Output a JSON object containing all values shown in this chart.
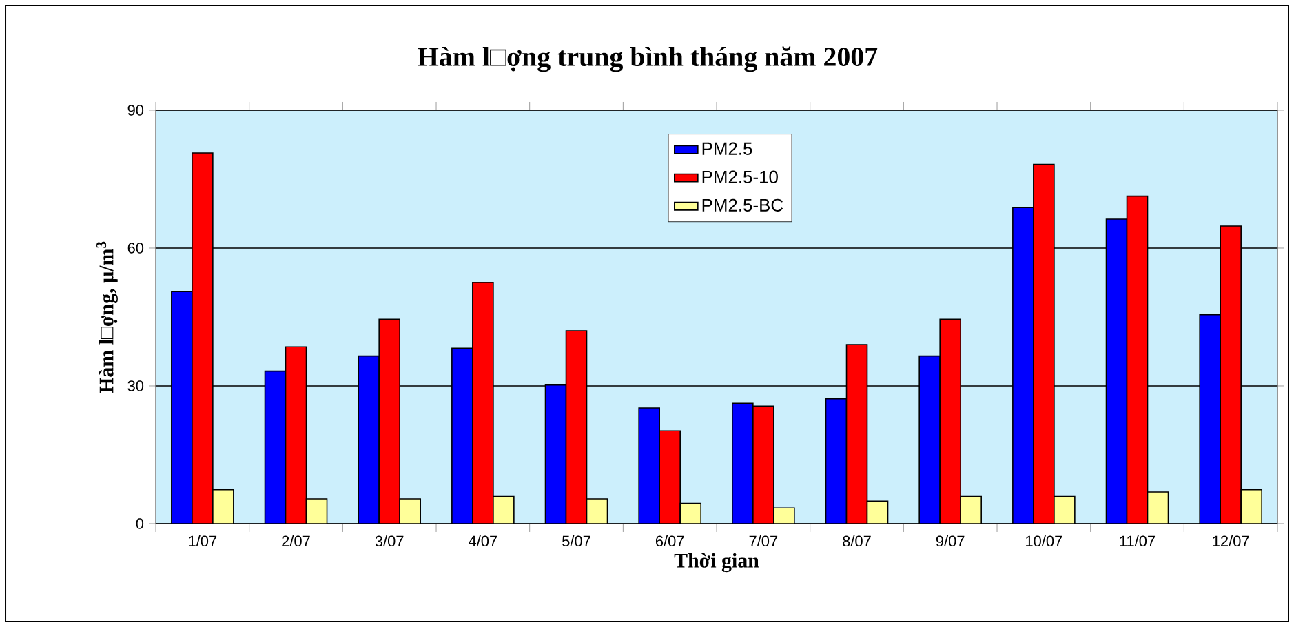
{
  "chart_data": {
    "type": "bar",
    "title": "Hàm l□ợng trung bình tháng năm 2007",
    "xlabel": "Thời gian",
    "ylabel": "Hàm l□ợng, µ/m$^{3}$",
    "categories": [
      "1/07",
      "2/07",
      "3/07",
      "4/07",
      "5/07",
      "6/07",
      "7/07",
      "8/07",
      "9/07",
      "10/07",
      "11/07",
      "12/07"
    ],
    "series": [
      {
        "name": "PM2.5",
        "color": "#0000ff",
        "values": [
          50.5,
          33.2,
          36.5,
          38.2,
          30.2,
          25.2,
          26.2,
          27.2,
          36.5,
          68.8,
          66.3,
          45.5
        ]
      },
      {
        "name": "PM2.5-10",
        "color": "#ff0000",
        "values": [
          80.7,
          38.5,
          44.5,
          52.5,
          42.0,
          20.2,
          25.6,
          39.0,
          44.5,
          78.2,
          71.3,
          64.8
        ]
      },
      {
        "name": "PM2.5-BC",
        "color": "#ffff99",
        "values": [
          7.4,
          5.4,
          5.4,
          5.9,
          5.4,
          4.4,
          3.4,
          4.9,
          5.9,
          5.9,
          6.9,
          7.4
        ]
      }
    ],
    "ylim": [
      0,
      90
    ],
    "yticks": [
      0,
      30,
      60,
      90
    ],
    "grid": "y",
    "legend": "top"
  }
}
